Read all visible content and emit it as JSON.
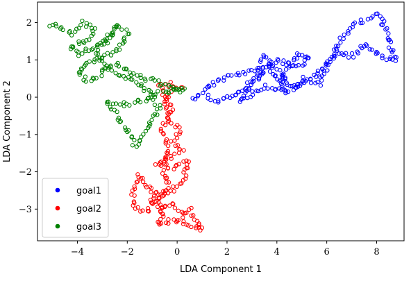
{
  "chart_data": {
    "type": "scatter",
    "title": "",
    "xlabel": "LDA Component 1",
    "ylabel": "LDA Component 2",
    "xlim": [
      -5.6,
      9.1
    ],
    "ylim": [
      -3.85,
      2.55
    ],
    "xticks": [
      -4,
      -2,
      0,
      2,
      4,
      6,
      8
    ],
    "yticks": [
      -3,
      -2,
      -1,
      0,
      1,
      2
    ],
    "xtick_labels": [
      "−4",
      "−2",
      "0",
      "2",
      "4",
      "6",
      "8"
    ],
    "ytick_labels": [
      "−3",
      "−2",
      "−1",
      "0",
      "1",
      "2"
    ],
    "grid": false,
    "legend_position": "lower-left",
    "series": [
      {
        "name": "goal1",
        "color": "#0000ff",
        "path": [
          [
            0.6,
            -0.05
          ],
          [
            1.0,
            0.15
          ],
          [
            1.5,
            0.4
          ],
          [
            2.0,
            0.55
          ],
          [
            2.6,
            0.65
          ],
          [
            3.2,
            0.7
          ],
          [
            3.5,
            1.1
          ],
          [
            3.9,
            0.8
          ],
          [
            4.3,
            0.6
          ],
          [
            4.1,
            0.2
          ],
          [
            3.6,
            0.3
          ],
          [
            3.0,
            0.1
          ],
          [
            2.5,
            -0.1
          ],
          [
            3.2,
            0.5
          ],
          [
            4.0,
            1.0
          ],
          [
            4.5,
            0.9
          ],
          [
            5.0,
            0.85
          ],
          [
            5.3,
            1.05
          ],
          [
            4.8,
            1.15
          ],
          [
            4.2,
            0.55
          ],
          [
            4.6,
            0.25
          ],
          [
            5.1,
            0.5
          ],
          [
            5.7,
            0.35
          ],
          [
            6.1,
            0.9
          ],
          [
            6.5,
            1.5
          ],
          [
            7.0,
            1.9
          ],
          [
            7.5,
            2.05
          ],
          [
            7.9,
            2.25
          ],
          [
            8.2,
            2.1
          ],
          [
            8.4,
            1.7
          ],
          [
            8.6,
            1.3
          ],
          [
            8.8,
            0.95
          ],
          [
            8.2,
            1.1
          ],
          [
            7.6,
            1.4
          ],
          [
            7.0,
            1.1
          ],
          [
            6.4,
            1.2
          ],
          [
            6.0,
            0.9
          ],
          [
            5.5,
            0.6
          ],
          [
            4.9,
            0.3
          ],
          [
            4.4,
            0.1
          ],
          [
            4.0,
            0.45
          ],
          [
            3.6,
            0.85
          ],
          [
            3.3,
            0.6
          ],
          [
            2.8,
            0.3
          ],
          [
            2.2,
            0.0
          ],
          [
            1.6,
            -0.1
          ],
          [
            1.1,
            0.05
          ]
        ]
      },
      {
        "name": "goal2",
        "color": "#ff0000",
        "path": [
          [
            0.2,
            0.25
          ],
          [
            -0.3,
            0.35
          ],
          [
            -0.7,
            0.3
          ],
          [
            -0.5,
            0.0
          ],
          [
            -0.2,
            -0.3
          ],
          [
            -0.4,
            -0.6
          ],
          [
            0.1,
            -0.9
          ],
          [
            -0.2,
            -1.2
          ],
          [
            0.2,
            -1.4
          ],
          [
            -0.3,
            -1.6
          ],
          [
            -0.8,
            -1.8
          ],
          [
            -0.2,
            -1.9
          ],
          [
            0.4,
            -1.7
          ],
          [
            0.3,
            -2.2
          ],
          [
            -0.2,
            -2.5
          ],
          [
            -0.9,
            -2.6
          ],
          [
            -1.5,
            -2.1
          ],
          [
            -1.8,
            -2.6
          ],
          [
            -1.7,
            -2.9
          ],
          [
            -1.2,
            -3.1
          ],
          [
            -0.9,
            -2.6
          ],
          [
            -0.6,
            -3.0
          ],
          [
            -0.1,
            -2.9
          ],
          [
            0.3,
            -3.2
          ],
          [
            0.5,
            -3.0
          ],
          [
            0.8,
            -3.4
          ],
          [
            1.0,
            -3.55
          ],
          [
            0.4,
            -3.4
          ],
          [
            -0.2,
            -3.3
          ],
          [
            -0.8,
            -3.4
          ],
          [
            -0.5,
            -3.1
          ],
          [
            -0.9,
            -2.9
          ],
          [
            -0.3,
            -2.4
          ],
          [
            -0.6,
            -2.0
          ],
          [
            -0.4,
            -1.4
          ],
          [
            -0.6,
            -0.8
          ],
          [
            -0.3,
            -0.4
          ],
          [
            -0.5,
            -0.1
          ],
          [
            -0.2,
            0.2
          ]
        ]
      },
      {
        "name": "goal3",
        "color": "#008000",
        "path": [
          [
            -5.1,
            1.95
          ],
          [
            -4.6,
            1.85
          ],
          [
            -4.2,
            1.7
          ],
          [
            -3.8,
            2.0
          ],
          [
            -3.3,
            1.85
          ],
          [
            -3.6,
            1.5
          ],
          [
            -4.3,
            1.35
          ],
          [
            -3.9,
            1.15
          ],
          [
            -3.3,
            1.35
          ],
          [
            -2.8,
            1.5
          ],
          [
            -2.4,
            1.9
          ],
          [
            -2.0,
            1.75
          ],
          [
            -2.3,
            1.3
          ],
          [
            -2.9,
            1.1
          ],
          [
            -3.5,
            0.95
          ],
          [
            -4.0,
            0.7
          ],
          [
            -3.6,
            0.4
          ],
          [
            -3.1,
            0.6
          ],
          [
            -2.5,
            0.9
          ],
          [
            -2.0,
            0.7
          ],
          [
            -1.5,
            0.55
          ],
          [
            -1.0,
            0.45
          ],
          [
            -0.5,
            0.3
          ],
          [
            0.0,
            0.25
          ],
          [
            0.3,
            0.2
          ],
          [
            -0.3,
            0.15
          ],
          [
            -0.8,
            0.1
          ],
          [
            -1.2,
            -0.05
          ],
          [
            -1.6,
            -0.15
          ],
          [
            -2.2,
            -0.2
          ],
          [
            -2.8,
            -0.15
          ],
          [
            -2.4,
            -0.5
          ],
          [
            -2.0,
            -0.9
          ],
          [
            -1.7,
            -1.3
          ],
          [
            -1.3,
            -1.0
          ],
          [
            -1.0,
            -0.6
          ],
          [
            -0.7,
            -0.3
          ],
          [
            -1.1,
            0.1
          ],
          [
            -1.6,
            0.35
          ],
          [
            -2.2,
            0.55
          ],
          [
            -2.8,
            0.8
          ],
          [
            -3.3,
            1.2
          ],
          [
            -2.8,
            1.6
          ],
          [
            -2.3,
            1.95
          ]
        ]
      }
    ]
  }
}
